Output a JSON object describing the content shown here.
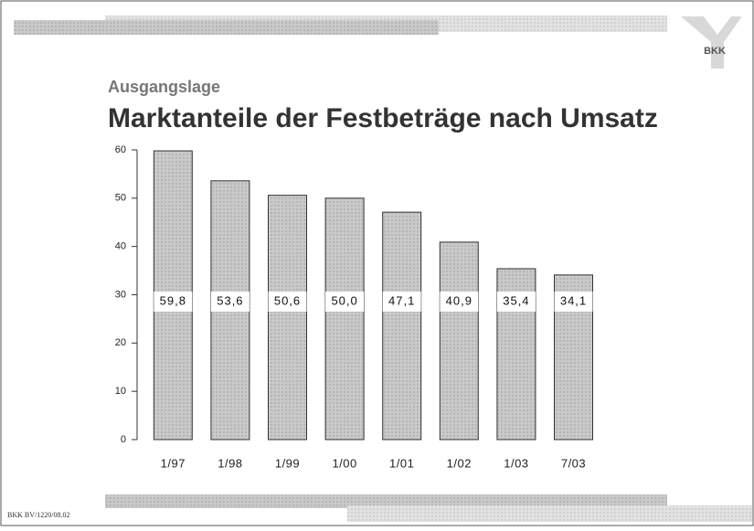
{
  "logo": "BKK",
  "footer": "BKK BV/1220/08.02",
  "chart_data": {
    "type": "bar",
    "subtitle": "Ausgangslage",
    "title": "Marktanteile der Festbeträge nach Umsatz",
    "categories": [
      "1/97",
      "1/98",
      "1/99",
      "1/00",
      "1/01",
      "1/02",
      "1/03",
      "7/03"
    ],
    "values": [
      59.8,
      53.6,
      50.6,
      50.0,
      47.1,
      40.9,
      35.4,
      34.1
    ],
    "value_labels": [
      "59,8",
      "53,6",
      "50,6",
      "50,0",
      "47,1",
      "40,9",
      "35,4",
      "34,1"
    ],
    "color": "#c6c6c6",
    "ylim": [
      0,
      60
    ],
    "yticks": [
      0,
      10,
      20,
      30,
      40,
      50,
      60
    ],
    "grid": false
  }
}
